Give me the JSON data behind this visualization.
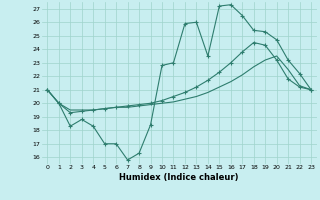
{
  "xlabel": "Humidex (Indice chaleur)",
  "x_min": -0.5,
  "x_max": 23.5,
  "y_min": 15.5,
  "y_max": 27.5,
  "yticks": [
    16,
    17,
    18,
    19,
    20,
    21,
    22,
    23,
    24,
    25,
    26,
    27
  ],
  "xticks": [
    0,
    1,
    2,
    3,
    4,
    5,
    6,
    7,
    8,
    9,
    10,
    11,
    12,
    13,
    14,
    15,
    16,
    17,
    18,
    19,
    20,
    21,
    22,
    23
  ],
  "background_color": "#c8eef0",
  "grid_color": "#9fd4cc",
  "line_color": "#2e7d6e",
  "line1_x": [
    0,
    1,
    2,
    3,
    4,
    5,
    6,
    7,
    8,
    9,
    10,
    11,
    12,
    13,
    14,
    15,
    16,
    17,
    18,
    19,
    20,
    21,
    22,
    23
  ],
  "line1_y": [
    21.0,
    20.0,
    18.3,
    18.8,
    18.3,
    17.0,
    17.0,
    15.8,
    16.3,
    18.4,
    22.8,
    23.0,
    25.9,
    26.0,
    23.5,
    27.2,
    27.3,
    26.5,
    25.4,
    25.3,
    24.7,
    23.2,
    22.2,
    21.0
  ],
  "line2_x": [
    0,
    1,
    2,
    3,
    4,
    5,
    6,
    7,
    8,
    9,
    10,
    11,
    12,
    13,
    14,
    15,
    16,
    17,
    18,
    19,
    20,
    21,
    22,
    23
  ],
  "line2_y": [
    21.0,
    20.0,
    19.3,
    19.4,
    19.5,
    19.6,
    19.7,
    19.8,
    19.9,
    20.0,
    20.2,
    20.5,
    20.8,
    21.2,
    21.7,
    22.3,
    23.0,
    23.8,
    24.5,
    24.3,
    23.2,
    21.8,
    21.2,
    21.0
  ],
  "line3_x": [
    0,
    1,
    2,
    3,
    4,
    5,
    6,
    7,
    8,
    9,
    10,
    11,
    12,
    13,
    14,
    15,
    16,
    17,
    18,
    19,
    20,
    21,
    22,
    23
  ],
  "line3_y": [
    21.0,
    20.0,
    19.5,
    19.5,
    19.5,
    19.6,
    19.7,
    19.7,
    19.8,
    19.9,
    20.0,
    20.1,
    20.3,
    20.5,
    20.8,
    21.2,
    21.6,
    22.1,
    22.7,
    23.2,
    23.5,
    22.5,
    21.3,
    21.0
  ]
}
